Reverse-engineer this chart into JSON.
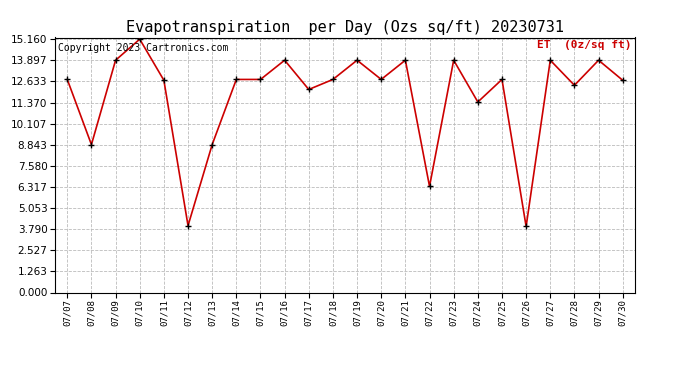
{
  "title": "Evapotranspiration  per Day (Ozs sq/ft) 20230731",
  "copyright": "Copyright 2023 Cartronics.com",
  "legend_label": "ET  (0z/sq ft)",
  "x_labels": [
    "07/07",
    "07/08",
    "07/09",
    "07/10",
    "07/11",
    "07/12",
    "07/13",
    "07/14",
    "07/15",
    "07/16",
    "07/17",
    "07/18",
    "07/19",
    "07/20",
    "07/21",
    "07/22",
    "07/23",
    "07/24",
    "07/25",
    "07/26",
    "07/27",
    "07/28",
    "07/29",
    "07/30"
  ],
  "y_values": [
    12.75,
    8.85,
    13.9,
    15.16,
    12.7,
    4.0,
    8.85,
    12.75,
    12.75,
    13.9,
    12.15,
    12.75,
    13.9,
    12.75,
    13.9,
    6.35,
    13.9,
    11.4,
    12.75,
    3.95,
    13.9,
    12.4,
    13.9,
    12.7
  ],
  "y_ticks": [
    0.0,
    1.263,
    2.527,
    3.79,
    5.053,
    6.317,
    7.58,
    8.843,
    10.107,
    11.37,
    12.633,
    13.897,
    15.16
  ],
  "y_min": 0.0,
  "y_max": 15.16,
  "line_color": "#cc0000",
  "marker_color": "#000000",
  "background_color": "#ffffff",
  "grid_color": "#bbbbbb",
  "title_fontsize": 11,
  "copyright_fontsize": 7,
  "legend_fontsize": 8,
  "legend_color": "#cc0000",
  "tick_fontsize": 7.5,
  "xtick_fontsize": 6.5
}
